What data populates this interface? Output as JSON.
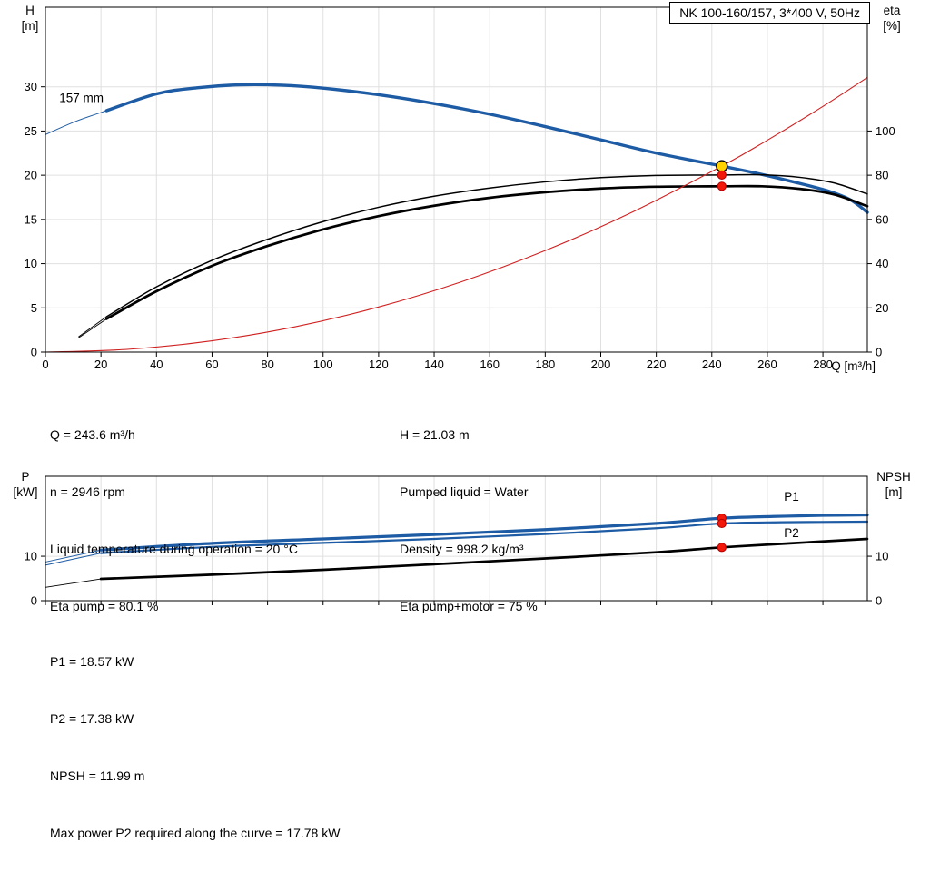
{
  "colors": {
    "blue": "#1d5ba4",
    "black": "#000000",
    "red": "#d02020",
    "dot_red": "#f2190a",
    "dot_yellow": "#ffd200",
    "grid": "#e0e0e0"
  },
  "info_top": {
    "col1": [
      "Q = 243.6 m³/h",
      "n = 2946 rpm",
      "Liquid temperature during operation = 20 °C",
      "Eta pump = 80.1 %"
    ],
    "col2": [
      "H = 21.03 m",
      "Pumped liquid = Water",
      "Density = 998.2 kg/m³",
      "Eta pump+motor = 75 %"
    ]
  },
  "info_bottom": [
    "P1 = 18.57 kW",
    "P2 = 17.38 kW",
    "NPSH = 11.99 m",
    "Max power P2 required along the curve = 17.78 kW"
  ],
  "chart_data": [
    {
      "id": "top",
      "type": "line",
      "title": "NK 100-160/157, 3*400 V, 50Hz",
      "x": {
        "label": "Q [m³/h]",
        "min": 0,
        "max": 296,
        "ticks": [
          0,
          20,
          40,
          60,
          80,
          100,
          120,
          140,
          160,
          180,
          200,
          220,
          240,
          260,
          280
        ],
        "showTickLabels": true
      },
      "yLeft": {
        "label": "H [m]",
        "line1": "H",
        "line2": "[m]",
        "min": 0,
        "max": 39,
        "ticks": [
          0,
          5,
          10,
          15,
          20,
          25,
          30
        ]
      },
      "yRight": {
        "label": "eta [%]",
        "line1": "eta",
        "line2": "[%]",
        "min": 0,
        "max": 156,
        "ticks": [
          0,
          20,
          40,
          60,
          80,
          100
        ]
      },
      "series": [
        {
          "name": "qh-extension",
          "axis": "left",
          "color": "#1d5ba4",
          "width": 1,
          "points": [
            [
              0,
              24.6
            ],
            [
              11,
              26.1
            ],
            [
              22,
              27.3
            ]
          ]
        },
        {
          "name": "qh-157mm",
          "axis": "left",
          "color": "#1d5ba4",
          "width": 3.4,
          "points": [
            [
              22,
              27.3
            ],
            [
              40,
              29.2
            ],
            [
              55,
              29.9
            ],
            [
              70,
              30.22
            ],
            [
              85,
              30.18
            ],
            [
              100,
              29.85
            ],
            [
              120,
              29.1
            ],
            [
              140,
              28.1
            ],
            [
              160,
              26.9
            ],
            [
              180,
              25.5
            ],
            [
              200,
              24.0
            ],
            [
              220,
              22.5
            ],
            [
              243.6,
              21.03
            ],
            [
              255,
              20.3
            ],
            [
              270,
              19.2
            ],
            [
              282,
              18.2
            ],
            [
              290,
              17.2
            ],
            [
              296,
              15.8
            ]
          ]
        },
        {
          "name": "eta-pump-extension",
          "axis": "right",
          "color": "#000000",
          "width": 0.9,
          "points": [
            [
              12,
              7
            ],
            [
              22,
              16
            ]
          ]
        },
        {
          "name": "eta-pump",
          "axis": "right",
          "color": "#000000",
          "width": 1.5,
          "points": [
            [
              22,
              16
            ],
            [
              40,
              29.5
            ],
            [
              60,
              41.5
            ],
            [
              80,
              51
            ],
            [
              100,
              59
            ],
            [
              120,
              65.5
            ],
            [
              140,
              70.5
            ],
            [
              160,
              74.2
            ],
            [
              180,
              77
            ],
            [
              200,
              78.9
            ],
            [
              220,
              79.9
            ],
            [
              243.6,
              80.1
            ],
            [
              258,
              80.2
            ],
            [
              272,
              79
            ],
            [
              284,
              76.5
            ],
            [
              296,
              71.5
            ]
          ]
        },
        {
          "name": "eta-pump-motor-extension",
          "axis": "right",
          "color": "#000000",
          "width": 0.9,
          "points": [
            [
              12,
              6.5
            ],
            [
              22,
              15
            ]
          ]
        },
        {
          "name": "eta-pump-motor",
          "axis": "right",
          "color": "#000000",
          "width": 2.7,
          "points": [
            [
              22,
              15
            ],
            [
              40,
              27.5
            ],
            [
              60,
              39
            ],
            [
              80,
              48
            ],
            [
              100,
              55.5
            ],
            [
              120,
              61.5
            ],
            [
              140,
              66.2
            ],
            [
              160,
              69.8
            ],
            [
              180,
              72.3
            ],
            [
              200,
              74
            ],
            [
              220,
              74.8
            ],
            [
              243.6,
              75
            ],
            [
              258,
              75
            ],
            [
              272,
              73.8
            ],
            [
              284,
              71.3
            ],
            [
              296,
              66
            ]
          ]
        },
        {
          "name": "system-curve",
          "axis": "left",
          "color": "#d02020",
          "width": 1.1,
          "points": [
            [
              0,
              0
            ],
            [
              30,
              0.32
            ],
            [
              60,
              1.28
            ],
            [
              90,
              2.87
            ],
            [
              120,
              5.1
            ],
            [
              150,
              7.97
            ],
            [
              180,
              11.48
            ],
            [
              210,
              15.62
            ],
            [
              243.6,
              21.03
            ],
            [
              260,
              23.96
            ],
            [
              280,
              27.78
            ],
            [
              296,
              31.05
            ]
          ]
        }
      ],
      "markers": [
        {
          "name": "duty-point-marker",
          "axis": "left",
          "x": 243.6,
          "y": 21.03,
          "r": 6,
          "fill": "#ffd200",
          "stroke": "#000000",
          "sw": 1.4
        },
        {
          "name": "eta-pump-marker",
          "axis": "right",
          "x": 243.6,
          "y": 80.1,
          "r": 4.6,
          "fill": "#f2190a",
          "stroke": "#b40000",
          "sw": 1
        },
        {
          "name": "eta-pump-motor-marker",
          "axis": "right",
          "x": 243.6,
          "y": 75,
          "r": 4.6,
          "fill": "#f2190a",
          "stroke": "#b40000",
          "sw": 1
        }
      ],
      "labels": [
        {
          "text": "157 mm",
          "x": 5,
          "y": 28.3,
          "axis": "left",
          "color": "#000000"
        }
      ]
    },
    {
      "id": "bottom",
      "type": "line",
      "title": "",
      "x": {
        "label": "",
        "min": 0,
        "max": 296,
        "ticks": [
          0,
          20,
          40,
          60,
          80,
          100,
          120,
          140,
          160,
          180,
          200,
          220,
          240,
          260,
          280
        ],
        "showTickLabels": false
      },
      "yLeft": {
        "label": "P [kW]",
        "line1": "P",
        "line2": "[kW]",
        "min": 0,
        "max": 28,
        "ticks": [
          0,
          10
        ]
      },
      "yRight": {
        "label": "NPSH [m]",
        "line1": "NPSH",
        "line2": "[m]",
        "min": 0,
        "max": 28,
        "ticks": [
          0,
          10
        ]
      },
      "series": [
        {
          "name": "p1-extension",
          "axis": "left",
          "color": "#1d5ba4",
          "width": 1,
          "points": [
            [
              0,
              8.7
            ],
            [
              20,
              11.4
            ]
          ]
        },
        {
          "name": "p1",
          "axis": "left",
          "color": "#1d5ba4",
          "width": 3.2,
          "points": [
            [
              20,
              11.4
            ],
            [
              60,
              12.9
            ],
            [
              100,
              13.9
            ],
            [
              140,
              14.9
            ],
            [
              180,
              16.0
            ],
            [
              220,
              17.4
            ],
            [
              243.6,
              18.57
            ],
            [
              262,
              18.95
            ],
            [
              280,
              19.2
            ],
            [
              296,
              19.3
            ]
          ]
        },
        {
          "name": "p2-extension",
          "axis": "left",
          "color": "#1d5ba4",
          "width": 1,
          "points": [
            [
              0,
              8.0
            ],
            [
              20,
              10.7
            ]
          ]
        },
        {
          "name": "p2",
          "axis": "left",
          "color": "#1d5ba4",
          "width": 2.2,
          "points": [
            [
              20,
              10.7
            ],
            [
              60,
              12.1
            ],
            [
              100,
              13.0
            ],
            [
              140,
              13.9
            ],
            [
              180,
              15.0
            ],
            [
              220,
              16.3
            ],
            [
              243.6,
              17.38
            ],
            [
              265,
              17.65
            ],
            [
              296,
              17.78
            ]
          ]
        },
        {
          "name": "npsh-extension",
          "axis": "right",
          "color": "#000000",
          "width": 0.9,
          "points": [
            [
              0,
              3.0
            ],
            [
              20,
              4.9
            ]
          ]
        },
        {
          "name": "npsh",
          "axis": "right",
          "color": "#000000",
          "width": 2.7,
          "points": [
            [
              20,
              4.9
            ],
            [
              60,
              5.85
            ],
            [
              100,
              6.95
            ],
            [
              140,
              8.2
            ],
            [
              180,
              9.5
            ],
            [
              220,
              10.9
            ],
            [
              243.6,
              11.99
            ],
            [
              268,
              12.9
            ],
            [
              296,
              13.9
            ]
          ]
        }
      ],
      "markers": [
        {
          "name": "p1-marker",
          "axis": "left",
          "x": 243.6,
          "y": 18.57,
          "r": 4.6,
          "fill": "#f2190a",
          "stroke": "#b40000",
          "sw": 1
        },
        {
          "name": "p2-marker",
          "axis": "left",
          "x": 243.6,
          "y": 17.38,
          "r": 4.6,
          "fill": "#f2190a",
          "stroke": "#b40000",
          "sw": 1
        },
        {
          "name": "npsh-marker",
          "axis": "right",
          "x": 243.6,
          "y": 11.99,
          "r": 4.6,
          "fill": "#f2190a",
          "stroke": "#b40000",
          "sw": 1
        }
      ],
      "labels": [
        {
          "text": "P1",
          "x": 266,
          "y": 22.5,
          "axis": "left",
          "color": "#1d5ba4"
        },
        {
          "text": "P2",
          "x": 266,
          "y": 14.3,
          "axis": "left",
          "color": "#1d5ba4"
        }
      ]
    }
  ]
}
